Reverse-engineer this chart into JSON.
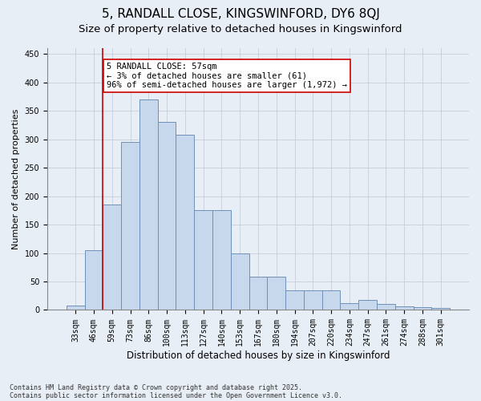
{
  "title1": "5, RANDALL CLOSE, KINGSWINFORD, DY6 8QJ",
  "title2": "Size of property relative to detached houses in Kingswinford",
  "xlabel": "Distribution of detached houses by size in Kingswinford",
  "ylabel": "Number of detached properties",
  "categories": [
    "33sqm",
    "46sqm",
    "59sqm",
    "73sqm",
    "86sqm",
    "100sqm",
    "113sqm",
    "127sqm",
    "140sqm",
    "153sqm",
    "167sqm",
    "180sqm",
    "194sqm",
    "207sqm",
    "220sqm",
    "234sqm",
    "247sqm",
    "261sqm",
    "274sqm",
    "288sqm",
    "301sqm"
  ],
  "values": [
    8,
    105,
    185,
    295,
    370,
    330,
    308,
    175,
    175,
    100,
    58,
    58,
    35,
    35,
    35,
    12,
    17,
    10,
    6,
    5,
    3
  ],
  "bar_color": "#c8d8ec",
  "bar_edgecolor": "#7090b8",
  "property_line_x": 1.5,
  "property_line_color": "#cc0000",
  "annotation_text": "5 RANDALL CLOSE: 57sqm\n← 3% of detached houses are smaller (61)\n96% of semi-detached houses are larger (1,972) →",
  "annotation_box_color": "#ffffff",
  "annotation_box_edgecolor": "#cc0000",
  "footer1": "Contains HM Land Registry data © Crown copyright and database right 2025.",
  "footer2": "Contains public sector information licensed under the Open Government Licence v3.0.",
  "background_color": "#e8eef5",
  "ylim": [
    0,
    460
  ],
  "title1_fontsize": 11,
  "title2_fontsize": 9.5,
  "xlabel_fontsize": 8.5,
  "ylabel_fontsize": 8,
  "tick_fontsize": 7,
  "annotation_fontsize": 7.5,
  "footer_fontsize": 6
}
